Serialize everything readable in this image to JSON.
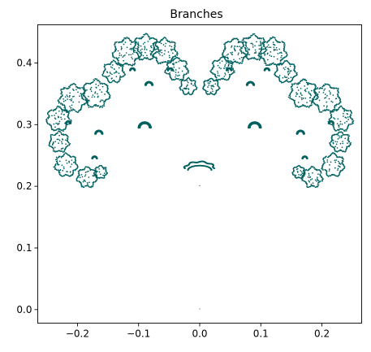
{
  "chart_data": {
    "type": "scatter",
    "title": "Branches",
    "xlabel": "",
    "ylabel": "",
    "xlim": [
      -0.265,
      0.265
    ],
    "ylim": [
      -0.022,
      0.462
    ],
    "xticks": [
      -0.2,
      -0.1,
      0.0,
      0.1,
      0.2
    ],
    "xtick_labels": [
      "−0.2",
      "−0.1",
      "0.0",
      "0.1",
      "0.2"
    ],
    "yticks": [
      0.0,
      0.1,
      0.2,
      0.3,
      0.4
    ],
    "ytick_labels": [
      "0.0",
      "0.1",
      "0.2",
      "0.3",
      "0.4"
    ],
    "grid": false,
    "legend": "none",
    "point_color": "#006060",
    "series": [
      {
        "clusters": [
          {
            "cx": -0.1196,
            "cy": 0.4176,
            "r": 0.022
          },
          {
            "cx": -0.0881,
            "cy": 0.4253,
            "r": 0.02
          },
          {
            "cx": -0.0581,
            "cy": 0.419,
            "r": 0.02
          },
          {
            "cx": -0.0374,
            "cy": 0.39,
            "r": 0.018
          },
          {
            "cx": -0.0187,
            "cy": 0.3617,
            "r": 0.013
          },
          {
            "cx": -0.1409,
            "cy": 0.3853,
            "r": 0.017
          },
          {
            "cx": -0.1697,
            "cy": 0.35,
            "r": 0.022
          },
          {
            "cx": -0.2075,
            "cy": 0.3427,
            "r": 0.022
          },
          {
            "cx": -0.2311,
            "cy": 0.309,
            "r": 0.019
          },
          {
            "cx": -0.2299,
            "cy": 0.2717,
            "r": 0.016
          },
          {
            "cx": -0.2186,
            "cy": 0.2343,
            "r": 0.018
          },
          {
            "cx": -0.1843,
            "cy": 0.2146,
            "r": 0.016
          },
          {
            "cx": -0.162,
            "cy": 0.223,
            "r": 0.01
          },
          {
            "cx": 0.1196,
            "cy": 0.4176,
            "r": 0.022
          },
          {
            "cx": 0.0881,
            "cy": 0.4253,
            "r": 0.02
          },
          {
            "cx": 0.0581,
            "cy": 0.419,
            "r": 0.02
          },
          {
            "cx": 0.0374,
            "cy": 0.39,
            "r": 0.018
          },
          {
            "cx": 0.0187,
            "cy": 0.3617,
            "r": 0.013
          },
          {
            "cx": 0.1409,
            "cy": 0.3853,
            "r": 0.017
          },
          {
            "cx": 0.1697,
            "cy": 0.35,
            "r": 0.022
          },
          {
            "cx": 0.2075,
            "cy": 0.3427,
            "r": 0.022
          },
          {
            "cx": 0.2311,
            "cy": 0.309,
            "r": 0.019
          },
          {
            "cx": 0.2299,
            "cy": 0.2717,
            "r": 0.016
          },
          {
            "cx": 0.2186,
            "cy": 0.2343,
            "r": 0.018
          },
          {
            "cx": 0.1843,
            "cy": 0.2146,
            "r": 0.016
          },
          {
            "cx": 0.162,
            "cy": 0.223,
            "r": 0.01
          }
        ],
        "arcs": [
          {
            "cx": -0.11,
            "cy": 0.388,
            "r": 0.004
          },
          {
            "cx": -0.083,
            "cy": 0.364,
            "r": 0.006
          },
          {
            "cx": -0.048,
            "cy": 0.388,
            "r": 0.004
          },
          {
            "cx": -0.09,
            "cy": 0.295,
            "r": 0.01
          },
          {
            "cx": -0.165,
            "cy": 0.285,
            "r": 0.006
          },
          {
            "cx": -0.172,
            "cy": 0.245,
            "r": 0.004
          },
          {
            "cx": -0.215,
            "cy": 0.302,
            "r": 0.004
          },
          {
            "cx": 0.11,
            "cy": 0.388,
            "r": 0.004
          },
          {
            "cx": 0.083,
            "cy": 0.364,
            "r": 0.006
          },
          {
            "cx": 0.048,
            "cy": 0.388,
            "r": 0.004
          },
          {
            "cx": 0.09,
            "cy": 0.295,
            "r": 0.01
          },
          {
            "cx": 0.165,
            "cy": 0.285,
            "r": 0.006
          },
          {
            "cx": 0.172,
            "cy": 0.245,
            "r": 0.004
          },
          {
            "cx": 0.215,
            "cy": 0.302,
            "r": 0.004
          }
        ],
        "center_cluster": {
          "cx": 0.0,
          "cy": 0.229,
          "r": 0.024
        },
        "isolated_points": [
          {
            "x": 0.0,
            "y": 0.201
          },
          {
            "x": 0.0,
            "y": 0.001
          }
        ]
      }
    ]
  }
}
